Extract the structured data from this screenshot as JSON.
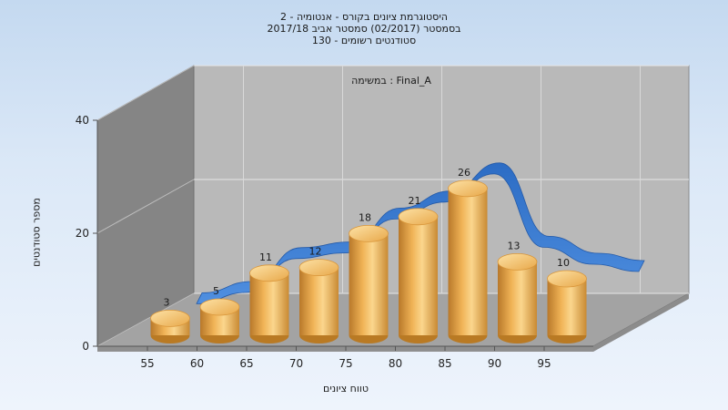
{
  "chart_data": {
    "type": "bar",
    "title_lines": [
      "היסטוגרמת ציונים בקורס - אנטומיה - 2",
      "בסמסטר (02/2017) סמסטר אביב 2017/18",
      "סטודנטים רשומים - 130"
    ],
    "annotation": "במשימה : Final_A",
    "xlabel": "טווח ציונים",
    "ylabel": "מספר סטודנטים",
    "categories": [
      "55",
      "60",
      "65",
      "70",
      "75",
      "80",
      "85",
      "90",
      "95"
    ],
    "y_ticks": [
      "0",
      "20",
      "40"
    ],
    "ylim": [
      0,
      40
    ],
    "bar_categories": [
      "55",
      "60",
      "65",
      "70",
      "75",
      "80",
      "85",
      "90",
      "95"
    ],
    "series": [
      {
        "name": "",
        "values": [
          3,
          5,
          11,
          12,
          18,
          21,
          26,
          13,
          10
        ]
      },
      {
        "name": "",
        "type": "area-ribbon",
        "values": [
          3,
          5,
          11,
          12,
          18,
          21,
          26,
          13,
          10
        ]
      }
    ],
    "grid": true,
    "colors": {
      "bar": "#f0b14f",
      "bar_dark": "#b97a24",
      "bar_top": "#f9d48a",
      "ribbon": "#2f72c9",
      "back_wall": "#b9b9b9",
      "side_wall": "#858585",
      "floor": "#a3a3a3"
    }
  }
}
